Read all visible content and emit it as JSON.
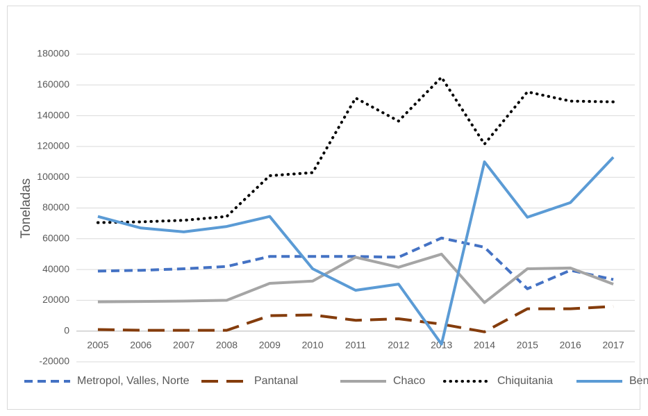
{
  "chart_data": {
    "type": "line",
    "y_label": "Toneladas",
    "categories": [
      "2005",
      "2006",
      "2007",
      "2008",
      "2009",
      "2010",
      "2011",
      "2012",
      "2013",
      "2014",
      "2015",
      "2016",
      "2017"
    ],
    "ylim": [
      -20000,
      180000
    ],
    "yticks": [
      -20000,
      0,
      20000,
      40000,
      60000,
      80000,
      100000,
      120000,
      140000,
      160000,
      180000
    ],
    "grid": true,
    "legend": "bottom",
    "series": [
      {
        "name": "Metropol, Valles, Norte",
        "color": "#4472c4",
        "dash": "dashed",
        "values": [
          39000,
          39500,
          40500,
          42000,
          48500,
          48500,
          48500,
          48000,
          60500,
          54500,
          27500,
          39500,
          33500
        ]
      },
      {
        "name": "Pantanal",
        "color": "#843c0c",
        "dash": "long-dash",
        "values": [
          1000,
          500,
          500,
          500,
          10000,
          10500,
          7000,
          8000,
          4500,
          -500,
          14500,
          14500,
          16000
        ]
      },
      {
        "name": "Chaco",
        "color": "#a5a5a5",
        "dash": "solid",
        "values": [
          19000,
          19200,
          19500,
          20000,
          31000,
          32500,
          48000,
          41500,
          50000,
          18500,
          40500,
          41000,
          30500
        ]
      },
      {
        "name": "Chiquitania",
        "color": "#000000",
        "dash": "dotted",
        "values": [
          70500,
          71000,
          72000,
          74500,
          101000,
          103000,
          151500,
          136500,
          165000,
          121500,
          155500,
          149500,
          149000
        ]
      },
      {
        "name": "Ben",
        "color": "#5b9bd5",
        "dash": "solid",
        "values": [
          74500,
          67000,
          64500,
          68000,
          74500,
          40500,
          26500,
          30500,
          -8500,
          110000,
          74000,
          83500,
          113000
        ]
      }
    ]
  }
}
